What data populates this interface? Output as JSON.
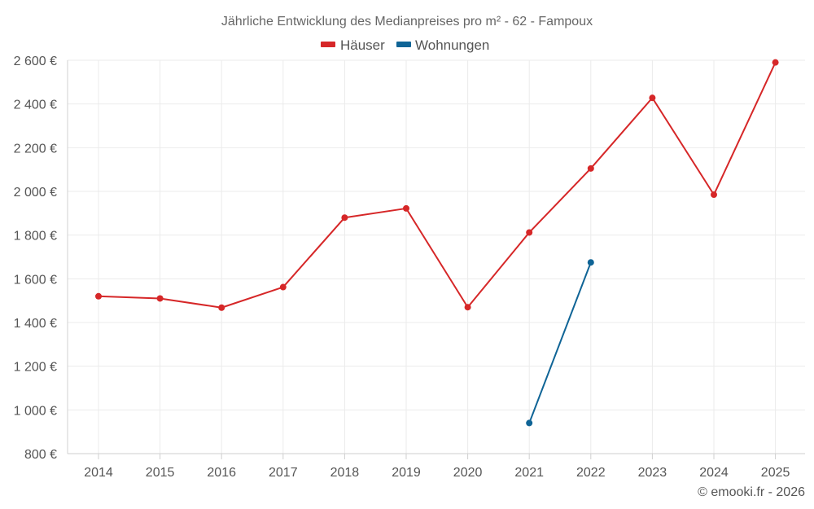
{
  "chart_data": {
    "type": "line",
    "title": "Jährliche Entwicklung des Medianpreises pro m² - 62 - Fampoux",
    "categories": [
      "2014",
      "2015",
      "2016",
      "2017",
      "2018",
      "2019",
      "2020",
      "2021",
      "2022",
      "2023",
      "2024",
      "2025"
    ],
    "series": [
      {
        "name": "Häuser",
        "color": "#d62728",
        "values": [
          1520,
          1510,
          1468,
          1562,
          1880,
          1922,
          1470,
          1812,
          2105,
          2428,
          1985,
          2590
        ]
      },
      {
        "name": "Wohnungen",
        "color": "#0f6496",
        "values": [
          null,
          null,
          null,
          null,
          null,
          null,
          null,
          940,
          1675,
          null,
          null,
          null
        ]
      }
    ],
    "ylim": [
      800,
      2600
    ],
    "yticks": [
      2600,
      2400,
      2200,
      2000,
      1800,
      1600,
      1400,
      1200,
      1000,
      800
    ],
    "ytick_labels": [
      "2 600 €",
      "2 400 €",
      "2 200 €",
      "2 000 €",
      "1 800 €",
      "1 600 €",
      "1 400 €",
      "1 200 €",
      "1 000 €",
      "800 €"
    ],
    "xlabel": "",
    "ylabel": "",
    "grid": true,
    "legend_position": "top-center"
  },
  "credit": "© emooki.fr - 2026"
}
